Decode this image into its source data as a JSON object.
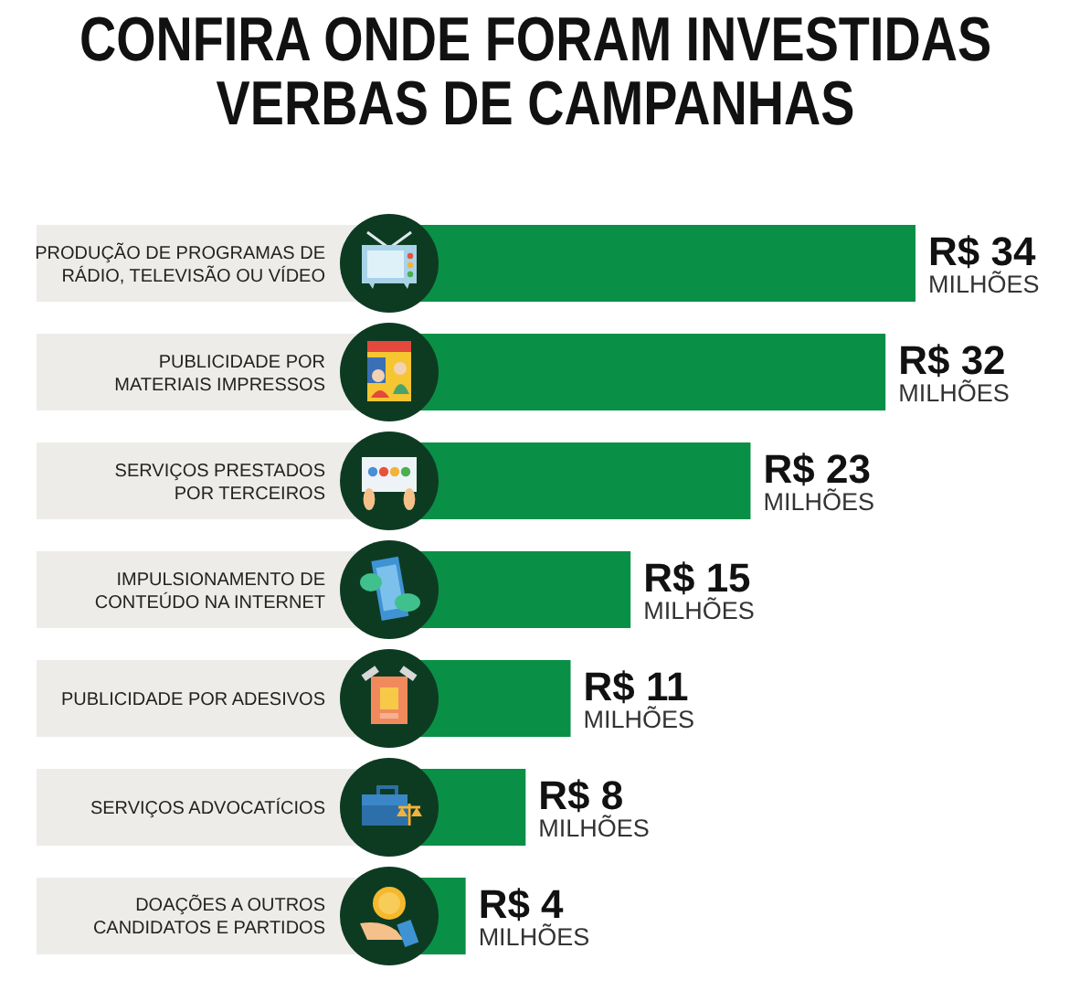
{
  "chart_data": {
    "type": "bar",
    "orientation": "horizontal",
    "title": "CONFIRA ONDE FORAM INVESTIDAS VERBAS DE CAMPANHAS",
    "categories": [
      "PRODUÇÃO DE PROGRAMAS DE RÁDIO, TELEVISÃO OU VÍDEO",
      "PUBLICIDADE POR MATERIAIS IMPRESSOS",
      "SERVIÇOS PRESTADOS POR TERCEIROS",
      "IMPULSIONAMENTO DE CONTEÚDO NA INTERNET",
      "PUBLICIDADE POR ADESIVOS",
      "SERVIÇOS ADVOCATÍCIOS",
      "DOAÇÕES A OUTROS CANDIDATOS E PARTIDOS"
    ],
    "values": [
      34,
      32,
      23,
      15,
      11,
      8,
      4
    ],
    "color": "#0a8f47",
    "value_labels": [
      "R$ 34 MILHÕES",
      "R$ 32 MILHÕES",
      "R$ 23 MILHÕES",
      "R$ 15 MILHÕES",
      "R$ 11 MILHÕES",
      "R$ 8 MILHÕES",
      "R$ 4 MILHÕES"
    ],
    "tick_labels": "y"
  }
}
